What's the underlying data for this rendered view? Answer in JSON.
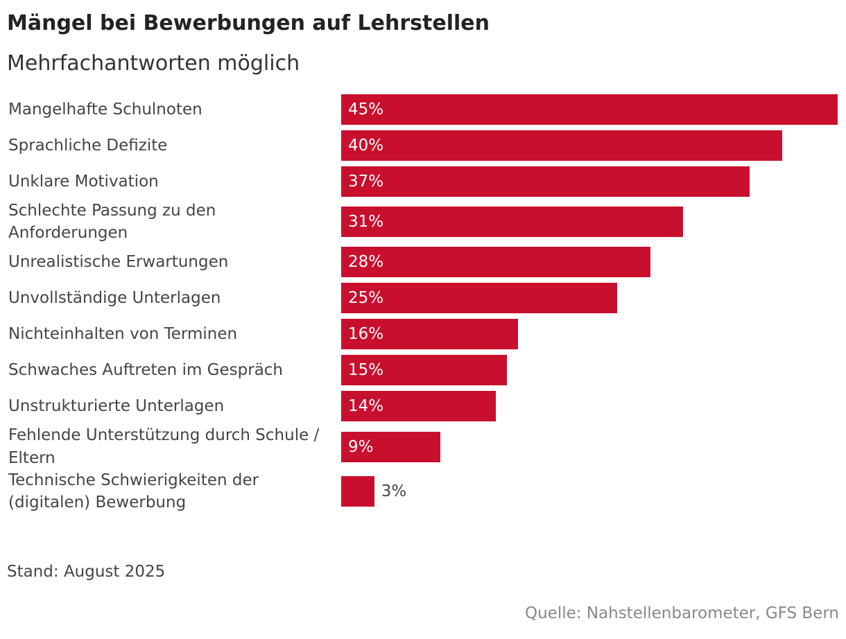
{
  "chart_data": {
    "type": "bar",
    "orientation": "horizontal",
    "title": "Mängel bei Bewerbungen auf Lehrstellen",
    "subtitle": "Mehrfachantworten möglich",
    "categories": [
      "Mangelhafte Schulnoten",
      "Sprachliche Defizite",
      "Unklare Motivation",
      "Schlechte Passung zu den Anforderungen",
      "Unrealistische Erwartungen",
      "Unvollständige Unterlagen",
      "Nichteinhalten von Terminen",
      "Schwaches Auftreten im Gespräch",
      "Unstrukturierte Unterlagen",
      "Fehlende Unterstützung durch Schule / Eltern",
      "Technische Schwierigkeiten der (digitalen) Bewerbung"
    ],
    "values": [
      45,
      40,
      37,
      31,
      28,
      25,
      16,
      15,
      14,
      9,
      3
    ],
    "value_labels": [
      "45%",
      "40%",
      "37%",
      "31%",
      "28%",
      "25%",
      "16%",
      "15%",
      "14%",
      "9%",
      "3%"
    ],
    "color": "#c8102e",
    "note": "Stand: August 2025",
    "source": "Quelle: Nahstellenbarometer, GFS Bern"
  }
}
